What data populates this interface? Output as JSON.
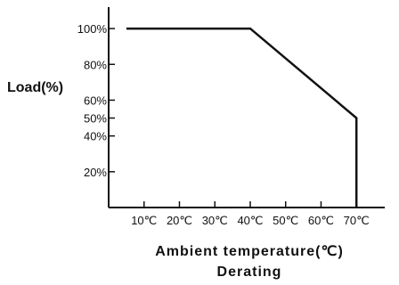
{
  "chart_data": {
    "type": "line",
    "title": "Derating",
    "xlabel": "Ambient temperature(℃)",
    "ylabel": "Load(%)",
    "x_ticks": [
      "10℃",
      "20℃",
      "30℃",
      "40℃",
      "50℃",
      "60℃",
      "70℃"
    ],
    "x_tick_values": [
      10,
      20,
      30,
      40,
      50,
      60,
      70
    ],
    "y_ticks": [
      "20%",
      "40%",
      "50%",
      "60%",
      "80%",
      "100%"
    ],
    "y_tick_values": [
      20,
      40,
      50,
      60,
      80,
      100
    ],
    "xlim": [
      0,
      78
    ],
    "ylim": [
      0,
      110
    ],
    "grid": false,
    "series": [
      {
        "x": [
          5,
          40,
          70,
          70
        ],
        "y": [
          100,
          100,
          50,
          0
        ]
      }
    ],
    "line_color": "#111111"
  }
}
